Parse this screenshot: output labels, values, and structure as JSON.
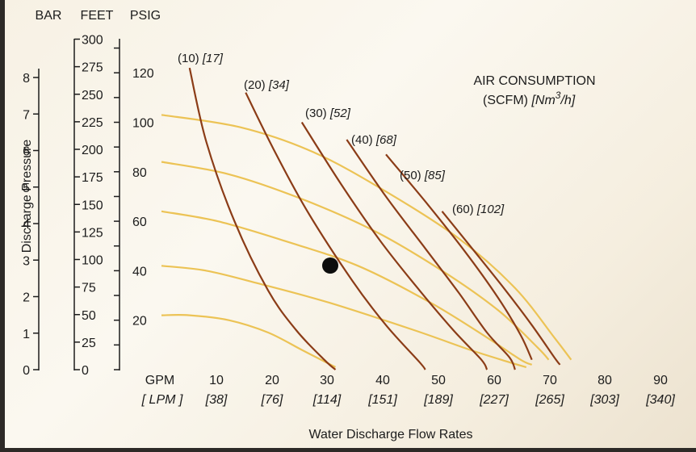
{
  "chart_data": {
    "type": "line",
    "title": "AIR CONSUMPTION",
    "subtitle_prefix": "(SCFM)",
    "subtitle_unit_base": "[Nm",
    "subtitle_unit_sup": "3",
    "subtitle_unit_tail": "/h]",
    "xlabel": "Water Discharge Flow Rates",
    "ylabel": "Discharge Pressure",
    "x_unit_gpm": "GPM",
    "x_unit_lpm": "[ LPM ]",
    "xlim": [
      0,
      90
    ],
    "x_ticks": [
      {
        "gpm": "10",
        "lpm": "[38]"
      },
      {
        "gpm": "20",
        "lpm": "[76]"
      },
      {
        "gpm": "30",
        "lpm": "[114]"
      },
      {
        "gpm": "40",
        "lpm": "[151]"
      },
      {
        "gpm": "50",
        "lpm": "[189]"
      },
      {
        "gpm": "60",
        "lpm": "[227]"
      },
      {
        "gpm": "70",
        "lpm": "[265]"
      },
      {
        "gpm": "80",
        "lpm": "[303]"
      },
      {
        "gpm": "90",
        "lpm": "[340]"
      }
    ],
    "y_axes": [
      {
        "unit": "BAR",
        "ticks": [
          "0",
          "1",
          "2",
          "3",
          "4",
          "5",
          "6",
          "7",
          "8"
        ]
      },
      {
        "unit": "FEET",
        "ticks": [
          "0",
          "25",
          "50",
          "75",
          "100",
          "125",
          "150",
          "175",
          "200",
          "225",
          "250",
          "275",
          "300"
        ]
      },
      {
        "unit": "PSIG",
        "ticks": [
          "20",
          "40",
          "60",
          "80",
          "100",
          "120"
        ]
      }
    ],
    "ylim_psig": [
      0,
      130
    ],
    "air_curves": [
      {
        "label": "(10)",
        "label_metric": "[17]",
        "points": [
          [
            5,
            122
          ],
          [
            8,
            92
          ],
          [
            13,
            60
          ],
          [
            19,
            32
          ],
          [
            24,
            16
          ],
          [
            29,
            4
          ],
          [
            31,
            0
          ]
        ]
      },
      {
        "label": "(20)",
        "label_metric": "[34]",
        "points": [
          [
            15,
            112
          ],
          [
            20,
            89
          ],
          [
            26,
            64
          ],
          [
            34,
            36
          ],
          [
            40,
            18
          ],
          [
            46,
            3
          ],
          [
            47,
            0
          ]
        ]
      },
      {
        "label": "(30)",
        "label_metric": "[52]",
        "points": [
          [
            25,
            100
          ],
          [
            32,
            75
          ],
          [
            39,
            52
          ],
          [
            46,
            32
          ],
          [
            52,
            16
          ],
          [
            57,
            4
          ],
          [
            58,
            0
          ]
        ]
      },
      {
        "label": "(40)",
        "label_metric": "[68]",
        "points": [
          [
            33,
            93
          ],
          [
            40,
            70
          ],
          [
            47,
            49
          ],
          [
            53,
            31
          ],
          [
            58,
            15
          ],
          [
            62,
            5
          ],
          [
            63,
            0
          ]
        ]
      },
      {
        "label": "(50)",
        "label_metric": "[85]",
        "points": [
          [
            40,
            87
          ],
          [
            47,
            68
          ],
          [
            54,
            48
          ],
          [
            60,
            29
          ],
          [
            64,
            14
          ],
          [
            66,
            4
          ]
        ]
      },
      {
        "label": "(60)",
        "label_metric": "[102]",
        "points": [
          [
            50,
            64
          ],
          [
            55,
            50
          ],
          [
            61,
            33
          ],
          [
            66,
            18
          ],
          [
            70,
            5
          ],
          [
            71,
            2
          ]
        ]
      }
    ],
    "pressure_curves": [
      {
        "psig": 20,
        "points": [
          [
            0,
            22
          ],
          [
            5,
            22
          ],
          [
            12,
            20
          ],
          [
            19,
            15
          ],
          [
            25,
            8
          ],
          [
            31,
            1
          ]
        ]
      },
      {
        "psig": 40,
        "points": [
          [
            0,
            42
          ],
          [
            8,
            40
          ],
          [
            17,
            35
          ],
          [
            30,
            27
          ],
          [
            45,
            16
          ],
          [
            55,
            8
          ],
          [
            62,
            3
          ],
          [
            65,
            1
          ]
        ]
      },
      {
        "psig": 60,
        "points": [
          [
            0,
            64
          ],
          [
            10,
            60
          ],
          [
            22,
            52
          ],
          [
            35,
            42
          ],
          [
            48,
            27
          ],
          [
            58,
            13
          ],
          [
            64,
            4
          ],
          [
            66,
            2
          ]
        ]
      },
      {
        "psig": 80,
        "points": [
          [
            0,
            84
          ],
          [
            12,
            79
          ],
          [
            25,
            69
          ],
          [
            38,
            56
          ],
          [
            50,
            40
          ],
          [
            60,
            24
          ],
          [
            67,
            9
          ],
          [
            69,
            4
          ]
        ]
      },
      {
        "psig": 100,
        "points": [
          [
            0,
            103
          ],
          [
            14,
            98
          ],
          [
            27,
            88
          ],
          [
            40,
            72
          ],
          [
            53,
            53
          ],
          [
            63,
            33
          ],
          [
            70,
            13
          ],
          [
            73,
            4
          ]
        ]
      }
    ],
    "marker": {
      "x": 30,
      "y": 40
    },
    "colors": {
      "air": "#8b3c17",
      "pressure": "#ecc355",
      "text": "#1c1c1c",
      "axis": "#1c1c1c",
      "marker": "#0d0d0d"
    }
  }
}
